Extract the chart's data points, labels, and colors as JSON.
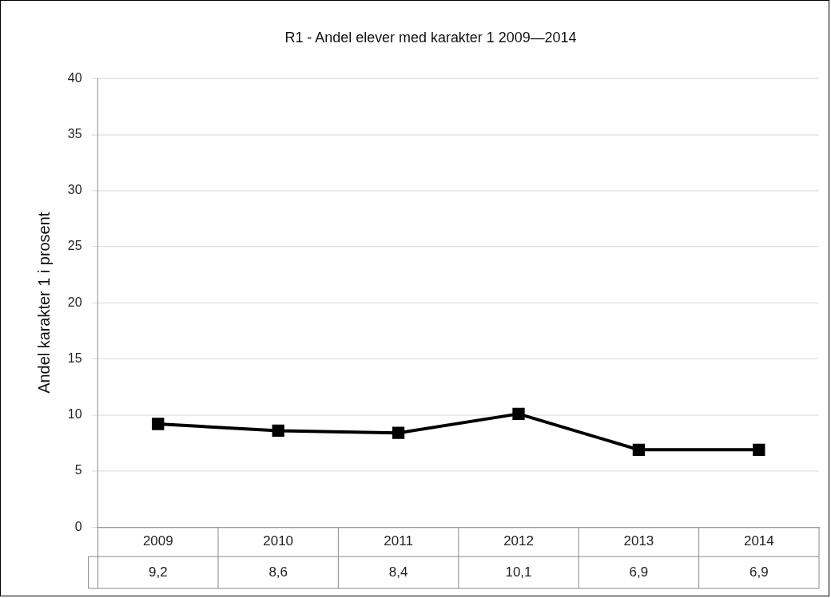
{
  "chart_data": {
    "type": "line",
    "title": "R1 - Andel elever med karakter 1 2009—2014",
    "ylabel": "Andel karakter 1 i prosent",
    "categories": [
      "2009",
      "2010",
      "2011",
      "2012",
      "2013",
      "2014"
    ],
    "series": [
      {
        "color": "#000000",
        "values": [
          9.2,
          8.6,
          8.4,
          10.1,
          6.9,
          6.9
        ],
        "value_labels": [
          "9,2",
          "8,6",
          "8,4",
          "10,1",
          "6,9",
          "6,9"
        ]
      }
    ],
    "ylim": [
      0,
      40
    ],
    "yticks": [
      0,
      5,
      10,
      15,
      20,
      25,
      30,
      35,
      40
    ],
    "grid": "y",
    "marker": "square",
    "line_style": "solid"
  }
}
